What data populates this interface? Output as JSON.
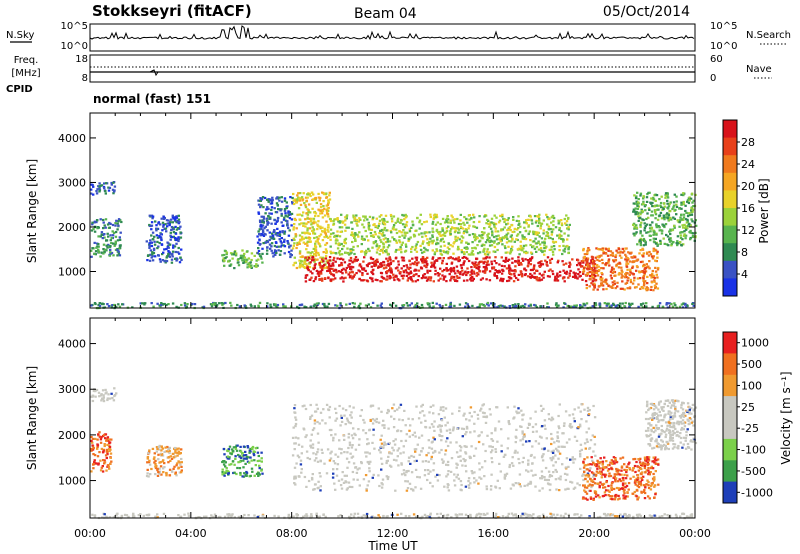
{
  "header": {
    "station": "Stokkseyri (fitACF)",
    "beam": "Beam 04",
    "date": "05/Oct/2014"
  },
  "strips": {
    "nsky_label": "N.Sky",
    "nsearch_label": "N.Search",
    "left_ticks": [
      "10^5",
      "10^0"
    ],
    "right_ticks": [
      "10^5",
      "10^0"
    ],
    "freq_label": "Freq.",
    "freq_unit": "[MHz]",
    "freq_ticks": [
      "18",
      "8"
    ],
    "nave_label": "Nave",
    "nave_ticks": [
      "60",
      "0"
    ],
    "cpid_label": "CPID",
    "cpid_value": "normal (fast) 151"
  },
  "chart_data": [
    {
      "type": "heatmap",
      "name": "power",
      "ylabel": "Slant Range [km]",
      "ylim": [
        180,
        4560
      ],
      "yticks": [
        "1000",
        "2000",
        "3000",
        "4000"
      ],
      "xlim_hours": [
        0,
        24
      ],
      "colorbar": {
        "label": "Power [dB]",
        "ticks": [
          "4",
          "8",
          "12",
          "16",
          "20",
          "24",
          "28"
        ],
        "colors": [
          "#1932e6",
          "#3a52c4",
          "#2f8a52",
          "#58b44e",
          "#9bd23a",
          "#e8d22a",
          "#f5a623",
          "#f07a1e",
          "#e8401a",
          "#d8121a"
        ]
      },
      "regions": [
        {
          "t": [
            0.0,
            1.0
          ],
          "r": [
            2750,
            3050
          ],
          "level": 1
        },
        {
          "t": [
            0.0,
            1.2
          ],
          "r": [
            1350,
            2200
          ],
          "level": 2
        },
        {
          "t": [
            0.0,
            24.0
          ],
          "r": [
            200,
            320
          ],
          "level": 2
        },
        {
          "t": [
            2.2,
            3.6
          ],
          "r": [
            1200,
            2300
          ],
          "level": 1
        },
        {
          "t": [
            5.2,
            6.8
          ],
          "r": [
            1100,
            1500
          ],
          "level": 3
        },
        {
          "t": [
            6.6,
            8.0
          ],
          "r": [
            1350,
            2700
          ],
          "level": 1
        },
        {
          "t": [
            8.0,
            9.5
          ],
          "r": [
            1100,
            2800
          ],
          "level": 5
        },
        {
          "t": [
            8.5,
            20.0
          ],
          "r": [
            800,
            1350
          ],
          "level": 9
        },
        {
          "t": [
            9.5,
            19.0
          ],
          "r": [
            1400,
            2300
          ],
          "level": 4
        },
        {
          "t": [
            19.5,
            22.5
          ],
          "r": [
            600,
            1550
          ],
          "level": 7
        },
        {
          "t": [
            21.5,
            24.0
          ],
          "r": [
            1600,
            2800
          ],
          "level": 3
        }
      ]
    },
    {
      "type": "heatmap",
      "name": "velocity",
      "xlabel": "Time UT",
      "ylabel": "Slant Range [km]",
      "ylim": [
        180,
        4560
      ],
      "yticks": [
        "1000",
        "2000",
        "3000",
        "4000"
      ],
      "xticks": [
        "00:00",
        "04:00",
        "08:00",
        "12:00",
        "16:00",
        "20:00",
        "00:00"
      ],
      "xlim_hours": [
        0,
        24
      ],
      "colorbar": {
        "label": "Velocity [m s⁻¹]",
        "ticks": [
          "1000",
          "500",
          "100",
          "25",
          "-25",
          "-100",
          "-500",
          "-1000"
        ],
        "colors": [
          "#1e3fb8",
          "#3ca04a",
          "#7bd04a",
          "#c8c8c0",
          "#c8c8c0",
          "#f09a30",
          "#f07020",
          "#e82020"
        ]
      },
      "regions": [
        {
          "t": [
            0.0,
            1.0
          ],
          "r": [
            2750,
            3050
          ],
          "level": 3
        },
        {
          "t": [
            0.0,
            0.8
          ],
          "r": [
            1200,
            2100
          ],
          "level": 6
        },
        {
          "t": [
            0.0,
            24.0
          ],
          "r": [
            200,
            300
          ],
          "level": 3
        },
        {
          "t": [
            2.2,
            3.6
          ],
          "r": [
            1100,
            1800
          ],
          "level": 5
        },
        {
          "t": [
            5.2,
            6.8
          ],
          "r": [
            1100,
            1800
          ],
          "level": 1
        },
        {
          "t": [
            8.0,
            20.0
          ],
          "r": [
            800,
            2700
          ],
          "level": 3
        },
        {
          "t": [
            19.5,
            22.5
          ],
          "r": [
            600,
            1550
          ],
          "level": 6
        },
        {
          "t": [
            22.0,
            24.0
          ],
          "r": [
            1700,
            2800
          ],
          "level": 3
        }
      ]
    }
  ]
}
